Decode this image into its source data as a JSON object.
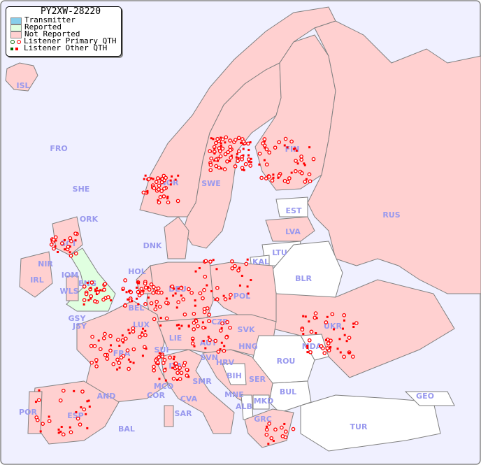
{
  "legend": {
    "title": "PY2XW-28220",
    "items": [
      {
        "label": "Transmitter",
        "color": "#87ceeb"
      },
      {
        "label": "Reported",
        "color": "#e0ffe0"
      },
      {
        "label": "Not Reported",
        "color": "#ffd0d0"
      },
      {
        "label": "Listener Primary QTH",
        "colors": [
          "#006400",
          "#ff0000"
        ]
      },
      {
        "label": "Listener Other QTH",
        "colors": [
          "#006400",
          "#ff0000"
        ]
      }
    ]
  },
  "colors": {
    "sea": "#f0f0ff",
    "not_reported": "#ffd0d0",
    "reported": "#e0ffe0",
    "no_data": "#ffffff",
    "label": "#9999ee",
    "marker": "#ff0000"
  },
  "countries": {
    "ISL": "ISL",
    "FRO": "FRO",
    "SHE": "SHE",
    "ORK": "ORK",
    "NOR": "NOR",
    "SWE": "SWE",
    "FIN": "FIN",
    "EST": "EST",
    "RUS": "RUS",
    "LVA": "LVA",
    "LTU": "LTU",
    "KAL": "KAL",
    "BLR": "BLR",
    "DNK": "DNK",
    "HOL": "HOL",
    "DEU": "DEU",
    "POL": "POL",
    "UKR": "UKR",
    "IRL": "IRL",
    "NIR": "NIR",
    "SCT": "SCT",
    "IOM": "IOM",
    "ENG": "ENG",
    "WLS": "WLS",
    "GSY": "GSY",
    "JSY": "JSY",
    "BEL": "BEL",
    "LUX": "LUX",
    "CZE": "CZE",
    "SVK": "SVK",
    "MDA": "MDA",
    "FRA": "FRA",
    "SUI": "SUI",
    "LIE": "LIE",
    "AUT": "AUT",
    "HNG": "HNG",
    "ROU": "ROU",
    "SVN": "SVN",
    "HRV": "HRV",
    "BIH": "BIH",
    "SER": "SER",
    "BUL": "BUL",
    "ITA": "ITA",
    "MCO": "MCO",
    "COR": "COR",
    "SMR": "SMR",
    "CVA": "CVA",
    "MNE": "MNE",
    "ALB": "ALB",
    "MKD": "MKD",
    "GEO": "GEO",
    "AND": "AND",
    "POR": "POR",
    "ESP": "ESP",
    "BAL": "BAL",
    "SAR": "SAR",
    "GRC": "GRC",
    "TUR": "TUR"
  }
}
